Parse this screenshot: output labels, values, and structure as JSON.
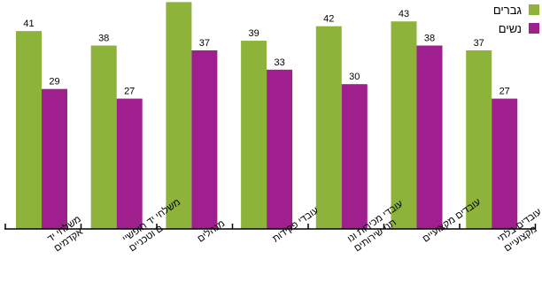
{
  "chart_data": {
    "type": "bar",
    "categories": [
      "משלחי יד אקדמים",
      "משלחי יד חופשיי ם וטכניים",
      "מנהלים",
      "עובדי פקידות",
      "עובדי מכירות ונו תני שירותים",
      "עובדים מקצועיים",
      "עובדים בלתי מקצועיים"
    ],
    "series": [
      {
        "name": "גברים",
        "values": [
          41,
          38,
          47,
          39,
          42,
          43,
          37
        ]
      },
      {
        "name": "נשים",
        "values": [
          29,
          27,
          37,
          33,
          30,
          38,
          27
        ]
      }
    ],
    "ylim": [
      0,
      50
    ],
    "grid": false,
    "legend": "top-right",
    "value_labels": true
  },
  "colors": {
    "men": "#8db33a",
    "women": "#9f1f8f",
    "axis": "#000000"
  }
}
